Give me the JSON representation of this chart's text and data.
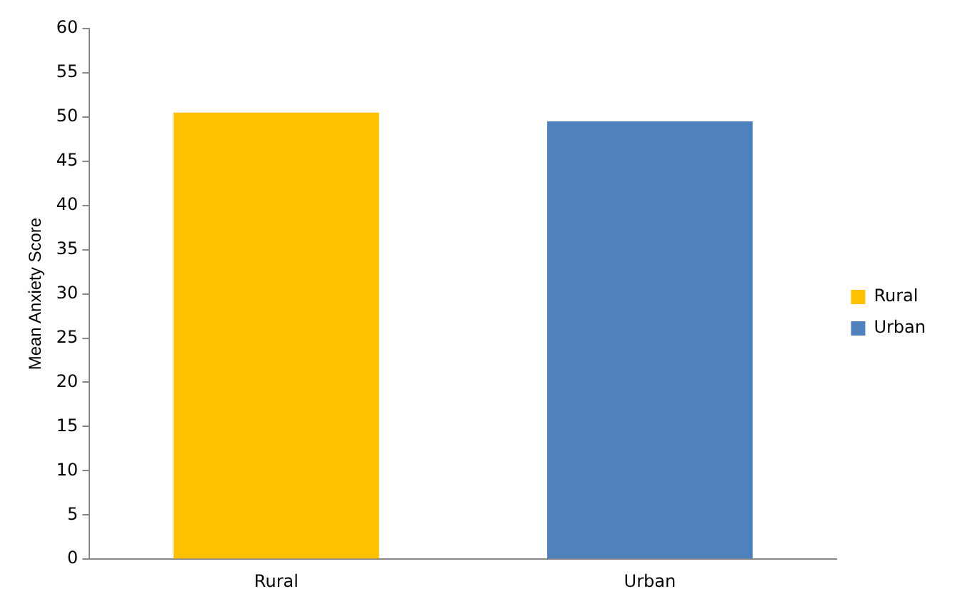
{
  "chart_data": {
    "type": "bar",
    "ylabel": "Mean Anxiety Score",
    "categories": [
      "Rural",
      "Urban"
    ],
    "series": [
      {
        "name": "Rural",
        "color": "#ffc000",
        "values": [
          50.5,
          null
        ]
      },
      {
        "name": "Urban",
        "color": "#4f81bd",
        "values": [
          null,
          49.5
        ]
      }
    ],
    "ylim": [
      0,
      60
    ],
    "yticks": [
      0,
      5,
      10,
      15,
      20,
      25,
      30,
      35,
      40,
      45,
      50,
      55,
      60
    ],
    "grid": false,
    "legend": "right"
  }
}
